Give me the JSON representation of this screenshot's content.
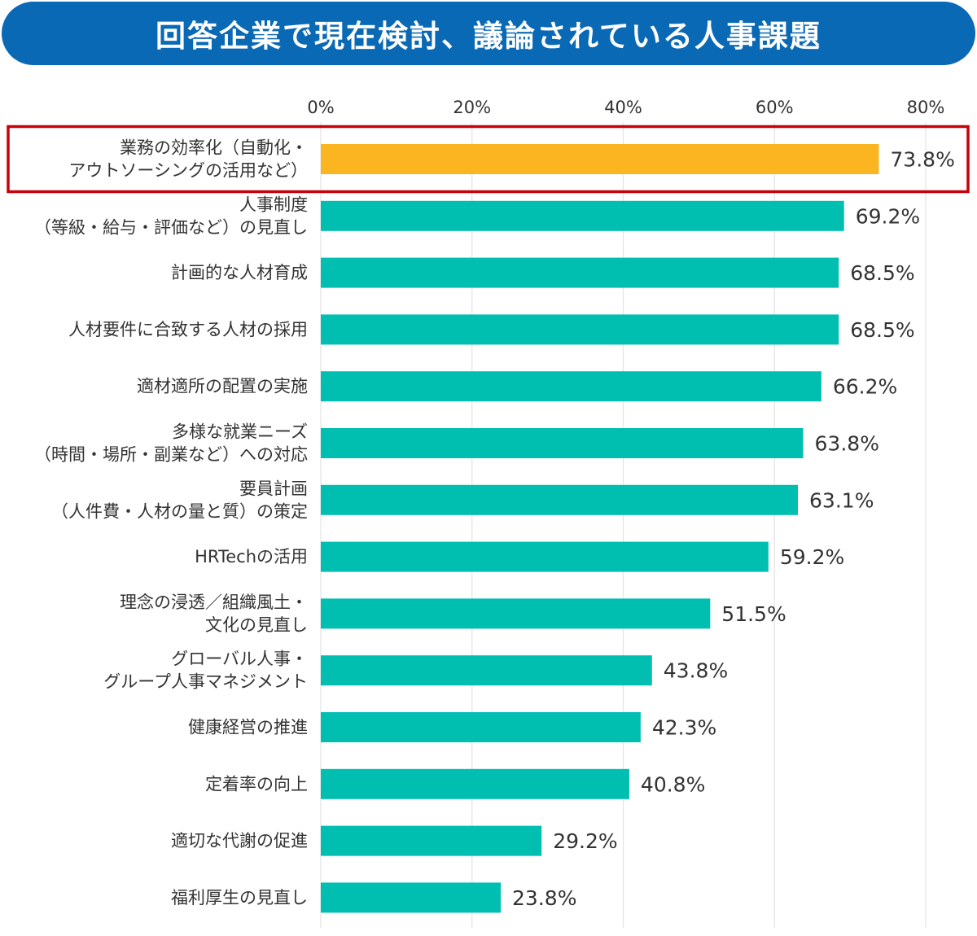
{
  "title": "回答企業で現在検討、議論されている人事課題",
  "colors": {
    "banner": "#0a69b4",
    "bar": "#00bfb0",
    "highlight_bar": "#fbb520",
    "highlight_frame": "#c8000a",
    "grid": "#e3e3e3",
    "text": "#333333"
  },
  "chart_data": {
    "type": "bar",
    "orientation": "horizontal",
    "title": "回答企業で現在検討、議論されている人事課題",
    "xlim": [
      0,
      80
    ],
    "ticks": [
      0,
      20,
      40,
      60,
      80
    ],
    "tick_labels": [
      "0%",
      "20%",
      "40%",
      "60%",
      "80%"
    ],
    "grid": true,
    "categories": [
      [
        "業務の効率化（自動化・",
        "アウトソーシングの活用など）"
      ],
      [
        "人事制度",
        "（等級・給与・評価など）の見直し"
      ],
      [
        "計画的な人材育成"
      ],
      [
        "人材要件に合致する人材の採用"
      ],
      [
        "適材適所の配置の実施"
      ],
      [
        "多様な就業ニーズ",
        "（時間・場所・副業など）への対応"
      ],
      [
        "要員計画",
        "（人件費・人材の量と質）の策定"
      ],
      [
        "HRTechの活用"
      ],
      [
        "理念の浸透／組織風土・",
        "文化の見直し"
      ],
      [
        "グローバル人事・",
        "グループ人事マネジメント"
      ],
      [
        "健康経営の推進"
      ],
      [
        "定着率の向上"
      ],
      [
        "適切な代謝の促進"
      ],
      [
        "福利厚生の見直し"
      ]
    ],
    "values": [
      73.8,
      69.2,
      68.5,
      68.5,
      66.2,
      63.8,
      63.1,
      59.2,
      51.5,
      43.8,
      42.3,
      40.8,
      29.2,
      23.8
    ],
    "value_labels": [
      "73.8%",
      "69.2%",
      "68.5%",
      "68.5%",
      "66.2%",
      "63.8%",
      "63.1%",
      "59.2%",
      "51.5%",
      "43.8%",
      "42.3%",
      "40.8%",
      "29.2%",
      "23.8%"
    ],
    "highlight_index": 0
  }
}
